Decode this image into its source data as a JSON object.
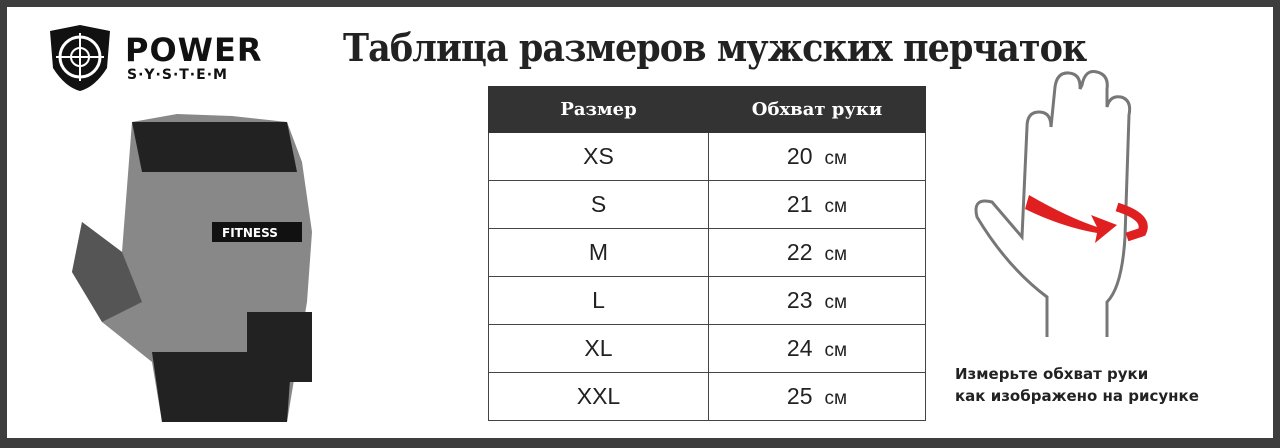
{
  "brand": {
    "line1": "POWER",
    "line2": "S·Y·S·T·E·M",
    "glove_label": "FITNESS"
  },
  "title": "Таблица размеров мужских перчаток",
  "table": {
    "headers": [
      "Размер",
      "Обхват руки"
    ],
    "rows": [
      {
        "size": "XS",
        "value": "20",
        "unit": "см"
      },
      {
        "size": "S",
        "value": "21",
        "unit": "см"
      },
      {
        "size": "M",
        "value": "22",
        "unit": "см"
      },
      {
        "size": "L",
        "value": "23",
        "unit": "см"
      },
      {
        "size": "XL",
        "value": "24",
        "unit": "см"
      },
      {
        "size": "XXL",
        "value": "25",
        "unit": "см"
      }
    ]
  },
  "note": {
    "line1": "Измерьте обхват руки",
    "line2": "как изображено на рисунке"
  },
  "colors": {
    "frame": "#3d3d3d",
    "header": "#333333",
    "arrow": "#e02020"
  }
}
